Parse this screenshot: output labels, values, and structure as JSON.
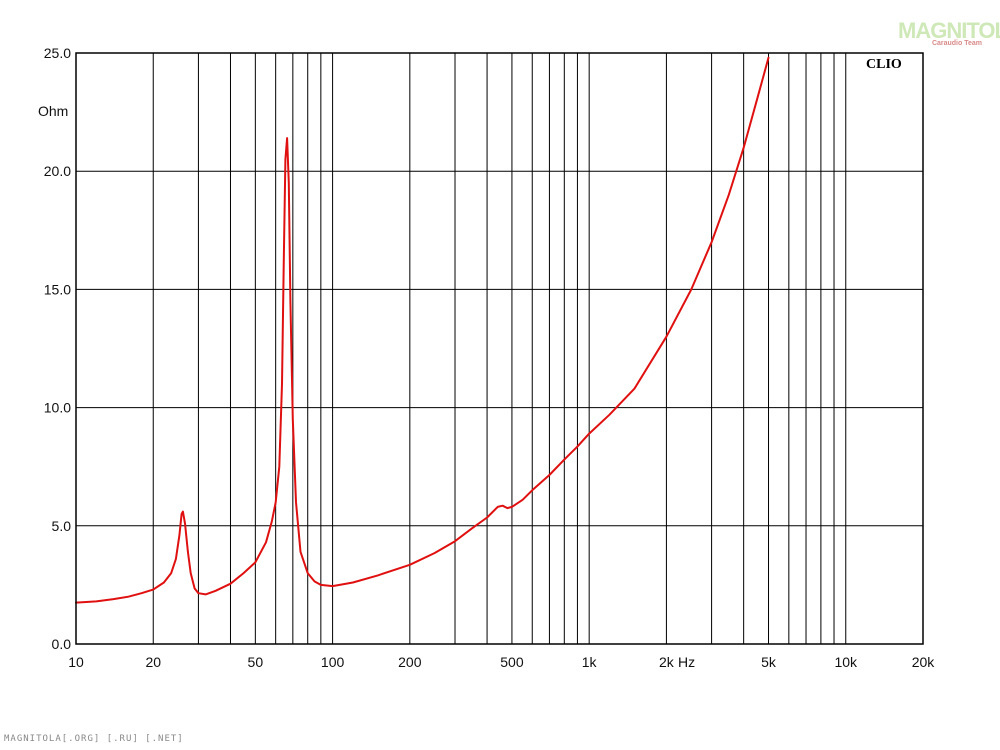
{
  "chart_data": {
    "type": "line",
    "title": "",
    "xlabel": "Hz",
    "ylabel": "Ohm",
    "x_scale": "log",
    "xlim": [
      10,
      20000
    ],
    "ylim": [
      0,
      25
    ],
    "grid": true,
    "x_tick_labels": [
      {
        "value": 10,
        "label": "10"
      },
      {
        "value": 20,
        "label": "20"
      },
      {
        "value": 50,
        "label": "50"
      },
      {
        "value": 100,
        "label": "100"
      },
      {
        "value": 200,
        "label": "200"
      },
      {
        "value": 500,
        "label": "500"
      },
      {
        "value": 1000,
        "label": "1k"
      },
      {
        "value": 2000,
        "label": "2k"
      },
      {
        "value": 5000,
        "label": "5k"
      },
      {
        "value": 10000,
        "label": "10k"
      },
      {
        "value": 20000,
        "label": "20k"
      }
    ],
    "y_tick_labels": [
      {
        "value": 0,
        "label": "0.0"
      },
      {
        "value": 5,
        "label": "5.0"
      },
      {
        "value": 10,
        "label": "10.0"
      },
      {
        "value": 15,
        "label": "15.0"
      },
      {
        "value": 20,
        "label": "20.0"
      },
      {
        "value": 25,
        "label": "25.0"
      }
    ],
    "series": [
      {
        "color": "#e01010",
        "points": [
          [
            10,
            1.75
          ],
          [
            12,
            1.8
          ],
          [
            14,
            1.9
          ],
          [
            16,
            2.0
          ],
          [
            18,
            2.15
          ],
          [
            20,
            2.3
          ],
          [
            22,
            2.6
          ],
          [
            23.5,
            3.0
          ],
          [
            24.5,
            3.6
          ],
          [
            25.3,
            4.6
          ],
          [
            25.8,
            5.5
          ],
          [
            26.1,
            5.6
          ],
          [
            26.6,
            5.1
          ],
          [
            27.3,
            3.9
          ],
          [
            28,
            3.0
          ],
          [
            29,
            2.35
          ],
          [
            30,
            2.15
          ],
          [
            32,
            2.1
          ],
          [
            35,
            2.25
          ],
          [
            40,
            2.55
          ],
          [
            45,
            3.0
          ],
          [
            50,
            3.45
          ],
          [
            55,
            4.3
          ],
          [
            58,
            5.2
          ],
          [
            60,
            6.0
          ],
          [
            62,
            7.5
          ],
          [
            63.5,
            11.0
          ],
          [
            64.5,
            16.0
          ],
          [
            65.5,
            20.5
          ],
          [
            66.5,
            21.4
          ],
          [
            67.5,
            19.5
          ],
          [
            68.5,
            14.5
          ],
          [
            70,
            9.5
          ],
          [
            72,
            6.0
          ],
          [
            75,
            3.9
          ],
          [
            80,
            3.0
          ],
          [
            85,
            2.65
          ],
          [
            90,
            2.5
          ],
          [
            100,
            2.45
          ],
          [
            120,
            2.6
          ],
          [
            150,
            2.9
          ],
          [
            200,
            3.35
          ],
          [
            250,
            3.85
          ],
          [
            300,
            4.35
          ],
          [
            350,
            4.9
          ],
          [
            400,
            5.35
          ],
          [
            440,
            5.8
          ],
          [
            460,
            5.85
          ],
          [
            480,
            5.75
          ],
          [
            500,
            5.8
          ],
          [
            550,
            6.1
          ],
          [
            600,
            6.5
          ],
          [
            700,
            7.15
          ],
          [
            800,
            7.8
          ],
          [
            900,
            8.35
          ],
          [
            1000,
            8.9
          ],
          [
            1200,
            9.7
          ],
          [
            1500,
            10.8
          ],
          [
            2000,
            13.0
          ],
          [
            2500,
            15.0
          ],
          [
            3000,
            17.0
          ],
          [
            3500,
            19.0
          ],
          [
            4000,
            21.0
          ],
          [
            4500,
            23.0
          ],
          [
            5000,
            24.8
          ]
        ]
      }
    ]
  },
  "brand_label": "CLIO",
  "logo": {
    "main": "MAGNITOLA",
    "sub": "Caraudio Team"
  },
  "watermark": "MAGNITOLA[.ORG] [.RU] [.NET]"
}
